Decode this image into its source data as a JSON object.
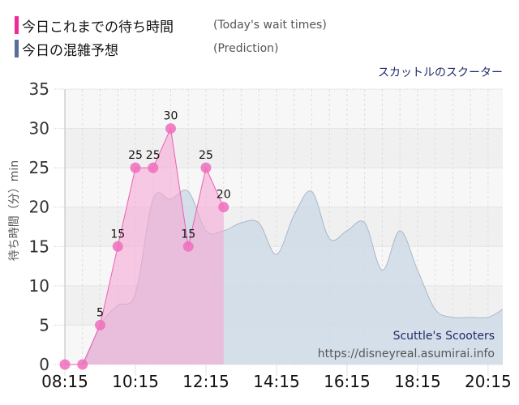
{
  "legend": {
    "items": [
      {
        "label_jp": "今日これまでの待ち時間",
        "label_en": "(Today's wait times)",
        "color": "#f0289a"
      },
      {
        "label_jp": "今日の混雑予想",
        "label_en": "(Prediction)",
        "color": "#5a6e9c"
      }
    ]
  },
  "attraction_name": "スカットルのスクーター",
  "watermark": {
    "title": "Scuttle's Scooters",
    "url": "https://disneyreal.asumirai.info"
  },
  "colors": {
    "actual_fill": "#f7a8d6",
    "actual_line": "#ec5fb3",
    "actual_marker": "#ee6fbc",
    "prediction_fill": "#cfdbe6",
    "prediction_line": "#a9b8c6",
    "plot_bg": "#f7f7f7",
    "band_bg": "#f0f0f0"
  },
  "chart_data": {
    "type": "area",
    "title": "スカットルのスクーター",
    "xlabel": "",
    "ylabel": "待ち時間（分）min",
    "ylim": [
      0,
      35
    ],
    "yticks": [
      0,
      5,
      10,
      15,
      20,
      25,
      30,
      35
    ],
    "xticks": [
      "08:15",
      "10:15",
      "12:15",
      "14:15",
      "16:15",
      "18:15",
      "20:15"
    ],
    "xrange_minutes": [
      495,
      1240
    ],
    "grid": true,
    "legend_position": "top-left",
    "series": [
      {
        "name": "今日これまでの待ち時間 (Today's wait times)",
        "kind": "area-with-markers",
        "x": [
          "08:15",
          "08:45",
          "09:15",
          "09:45",
          "10:15",
          "10:45",
          "11:15",
          "11:45",
          "12:15",
          "12:45"
        ],
        "values": [
          0,
          0,
          5,
          15,
          25,
          25,
          30,
          15,
          25,
          20
        ],
        "data_labels": [
          "",
          "",
          "5",
          "15",
          "25",
          "25",
          "30",
          "15",
          "25",
          "20"
        ]
      },
      {
        "name": "今日の混雑予想 (Prediction)",
        "kind": "smooth-area",
        "x": [
          "08:15",
          "08:45",
          "09:15",
          "09:45",
          "10:15",
          "10:45",
          "11:15",
          "11:45",
          "12:15",
          "12:45",
          "13:15",
          "13:45",
          "14:15",
          "14:45",
          "15:15",
          "15:45",
          "16:15",
          "16:45",
          "17:15",
          "17:45",
          "18:15",
          "18:45",
          "19:15",
          "19:45",
          "20:15",
          "20:40"
        ],
        "values": [
          0,
          0,
          5,
          7.5,
          9,
          21,
          21,
          22,
          17,
          17,
          18,
          18,
          14,
          19,
          22,
          16,
          17,
          18,
          12,
          17,
          12,
          7,
          6,
          6,
          6,
          7
        ]
      }
    ]
  }
}
